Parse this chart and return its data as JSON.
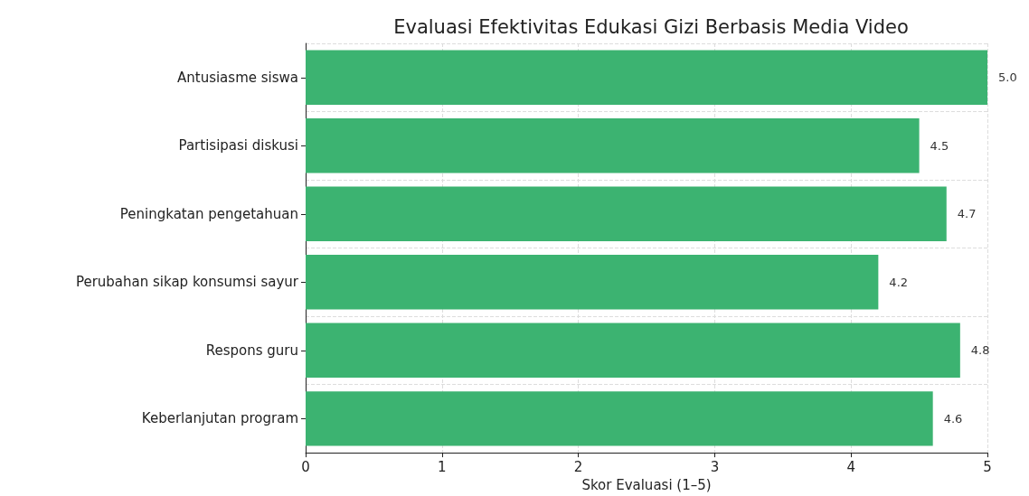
{
  "chart_data": {
    "type": "bar",
    "orientation": "horizontal",
    "title": "Evaluasi Efektivitas Edukasi Gizi Berbasis Media Video",
    "xlabel": "Skor Evaluasi (1–5)",
    "categories": [
      "Antusiasme siswa",
      "Partisipasi diskusi",
      "Peningkatan pengetahuan",
      "Perubahan sikap konsumsi sayur",
      "Respons guru",
      "Keberlanjutan program"
    ],
    "values": [
      5.0,
      4.5,
      4.7,
      4.2,
      4.8,
      4.6
    ],
    "value_labels": [
      "5.0",
      "4.5",
      "4.7",
      "4.2",
      "4.8",
      "4.6"
    ],
    "color": "#3cb371",
    "xlim": [
      0,
      5
    ],
    "xticks": [
      0,
      1,
      2,
      3,
      4,
      5
    ],
    "grid": true
  }
}
